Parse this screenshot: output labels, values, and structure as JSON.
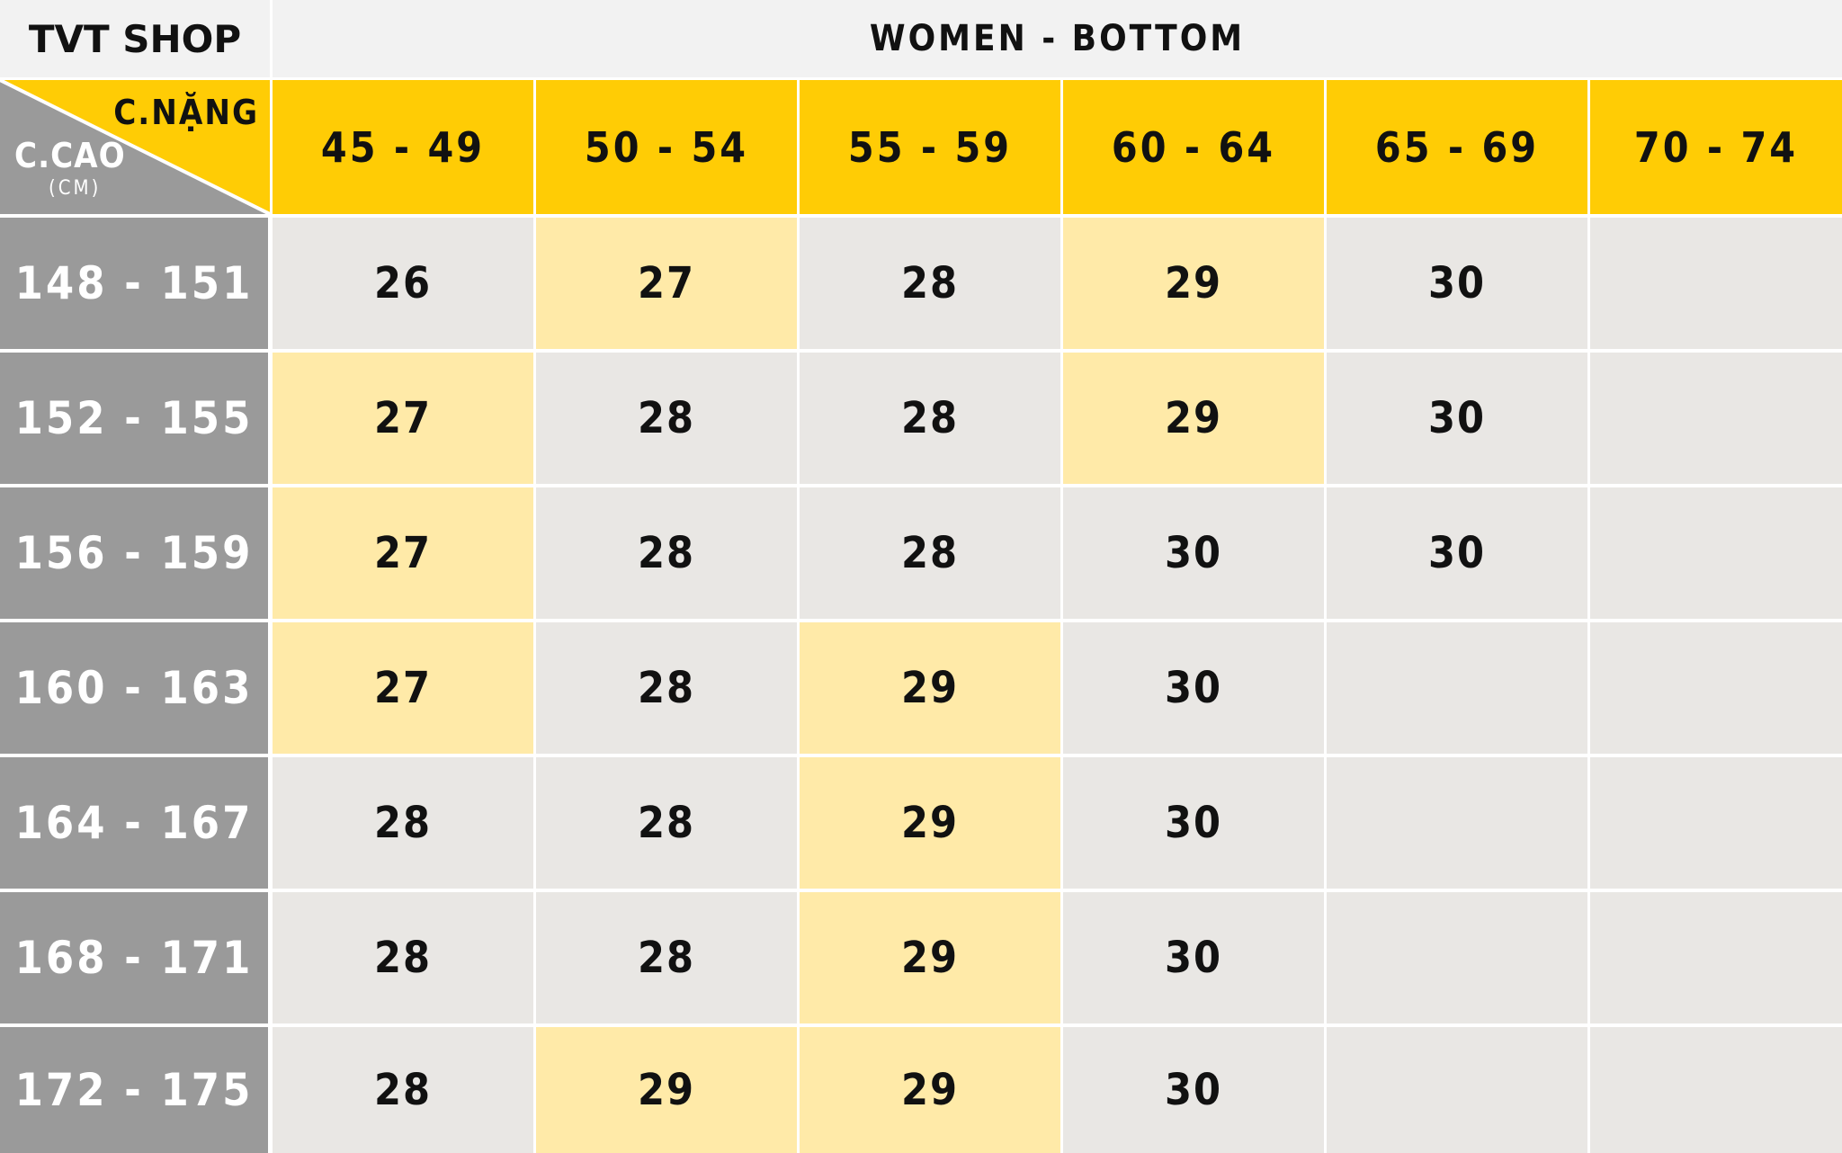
{
  "brand": "TVT SHOP",
  "title": "WOMEN - BOTTOM",
  "corner": {
    "weight_label": "C.NẶNG",
    "height_label": "C.CAO",
    "height_unit": "(CM)"
  },
  "weights": [
    "45 - 49",
    "50 - 54",
    "55 - 59",
    "60 - 64",
    "65 - 69",
    "70 - 74"
  ],
  "heights": [
    "148 - 151",
    "152 - 155",
    "156 - 159",
    "160 - 163",
    "164 - 167",
    "168 - 171",
    "172 - 175"
  ],
  "rows": [
    [
      "26",
      "27",
      "28",
      "29",
      "30",
      ""
    ],
    [
      "27",
      "28",
      "28",
      "29",
      "30",
      ""
    ],
    [
      "27",
      "28",
      "28",
      "30",
      "30",
      ""
    ],
    [
      "27",
      "28",
      "29",
      "30",
      "",
      ""
    ],
    [
      "28",
      "28",
      "29",
      "30",
      "",
      ""
    ],
    [
      "28",
      "28",
      "29",
      "30",
      "",
      ""
    ],
    [
      "28",
      "29",
      "29",
      "30",
      "",
      ""
    ]
  ],
  "highlight": [
    [
      false,
      true,
      false,
      true,
      false,
      false
    ],
    [
      true,
      false,
      false,
      true,
      false,
      false
    ],
    [
      true,
      false,
      false,
      false,
      false,
      false
    ],
    [
      true,
      false,
      true,
      false,
      false,
      false
    ],
    [
      false,
      false,
      true,
      false,
      false,
      false
    ],
    [
      false,
      false,
      true,
      false,
      false,
      false
    ],
    [
      false,
      true,
      true,
      false,
      false,
      false
    ]
  ],
  "colors": {
    "header_yellow": "#ffcc05",
    "highlight_yellow": "#ffeaa8",
    "cell_grey": "#e9e7e4",
    "row_header_grey": "#9a9a9a"
  }
}
